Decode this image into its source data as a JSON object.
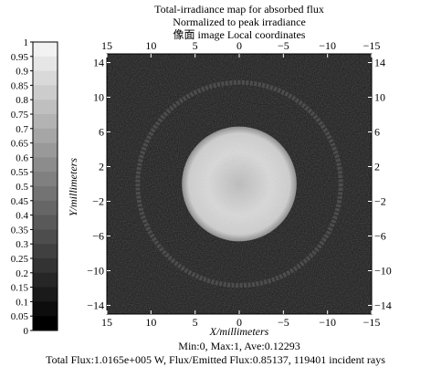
{
  "chart_data": {
    "type": "heatmap",
    "title_lines": [
      "Total-irradiance map for absorbed flux",
      "Normalized to peak irradiance",
      "像面 image   Local coordinates"
    ],
    "xlabel": "X/millimeters",
    "ylabel": "Y/millimeters",
    "x_ticks": [
      15,
      10,
      5,
      0,
      -5,
      -10,
      -15
    ],
    "y_ticks_left": [
      14,
      10,
      6,
      2,
      -2,
      -6,
      -10,
      -14
    ],
    "y_ticks_right": [
      14,
      10,
      6,
      2,
      -2,
      -6,
      -10,
      -14
    ],
    "xlim": [
      15,
      -15
    ],
    "ylim": [
      -15,
      15
    ],
    "colorbar": {
      "ticks": [
        "1",
        "0.95",
        "0.9",
        "0.85",
        "0.8",
        "0.75",
        "0.7",
        "0.65",
        "0.6",
        "0.55",
        "0.5",
        "0.45",
        "0.4",
        "0.35",
        "0.3",
        "0.25",
        "0.2",
        "0.15",
        "0.1",
        "0.05",
        "0"
      ],
      "levels": [
        0.95,
        0.9,
        0.85,
        0.8,
        0.75,
        0.7,
        0.65,
        0.6,
        0.55,
        0.5,
        0.45,
        0.4,
        0.35,
        0.3,
        0.25,
        0.2,
        0.15,
        0.1,
        0.05,
        0.0
      ],
      "colormap": "grayscale"
    },
    "features": {
      "central_spot": {
        "center": [
          0,
          0
        ],
        "radius_mm": 6.5,
        "level": 1.0
      },
      "ring": {
        "center": [
          0,
          0
        ],
        "radius_mm": 11.5,
        "level": 0.3
      }
    },
    "stats_line": "Min:0, Max:1, Ave:0.12293",
    "flux_line": "Total Flux:1.0165e+005 W, Flux/Emitted Flux:0.85137, 119401 incident rays",
    "background_color": "#151515"
  }
}
